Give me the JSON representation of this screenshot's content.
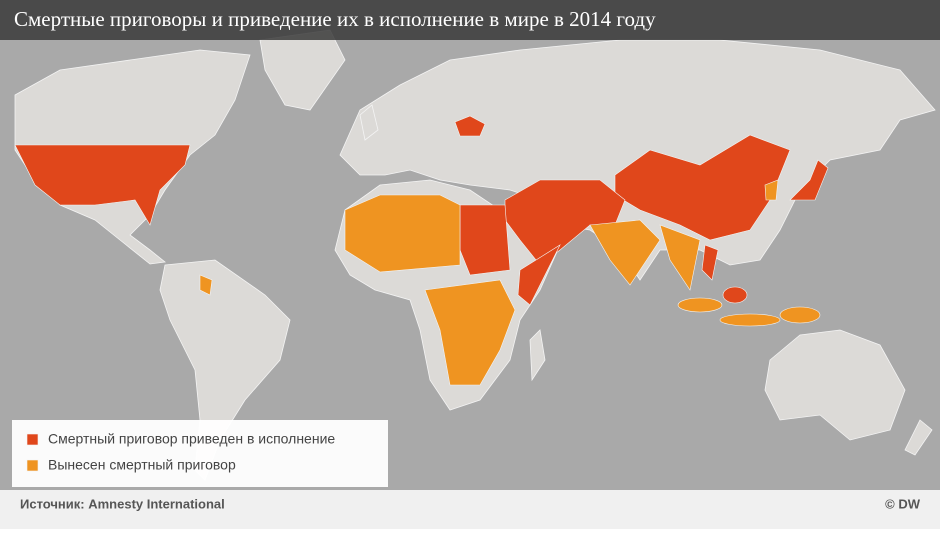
{
  "header": {
    "title": "Смертные приговоры и приведение их в исполнение в мире в 2014 году"
  },
  "legend": {
    "items": [
      {
        "label": "Смертный приговор приведен в исполнение"
      },
      {
        "label": "Вынесен смертный приговор"
      }
    ]
  },
  "footer": {
    "source": "Источник: Amnesty International",
    "credit": "© DW"
  }
}
